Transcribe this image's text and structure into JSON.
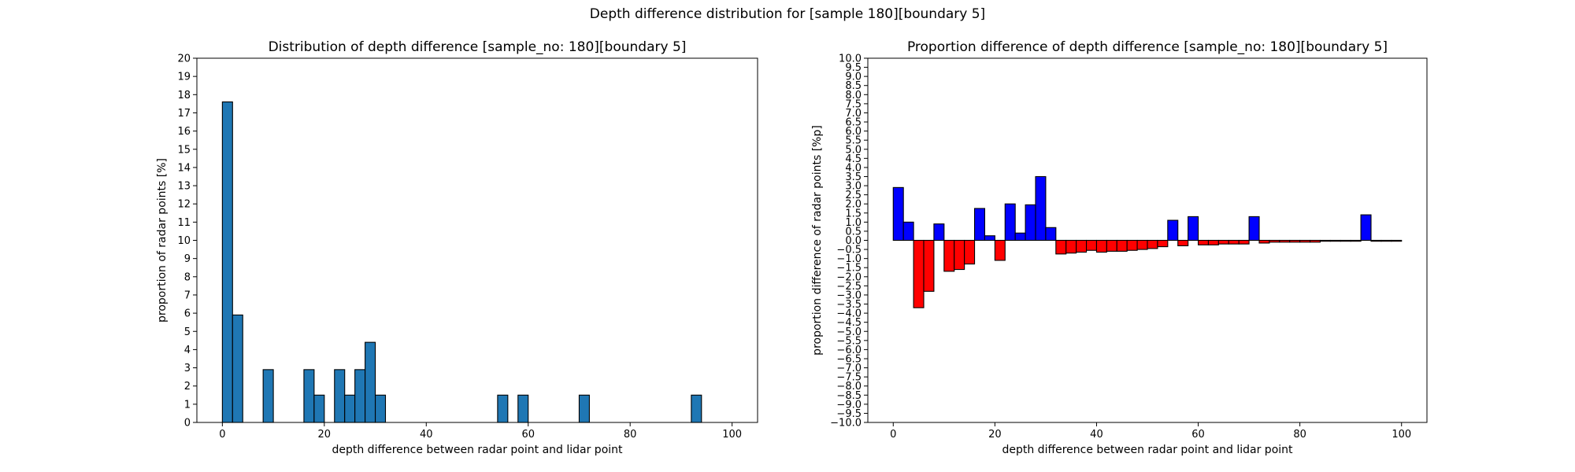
{
  "figure": {
    "title": "Depth difference distribution for [sample 180][boundary 5]"
  },
  "chart_data": [
    {
      "type": "bar",
      "title": "Distribution of depth difference [sample_no: 180][boundary 5]",
      "xlabel": "depth difference between radar point and lidar point",
      "ylabel": "proportion of radar points [%]",
      "xlim": [
        -5,
        105
      ],
      "ylim": [
        0,
        20
      ],
      "xticks": [
        0,
        20,
        40,
        60,
        80,
        100
      ],
      "yticks": [
        0,
        1,
        2,
        3,
        4,
        5,
        6,
        7,
        8,
        9,
        10,
        11,
        12,
        13,
        14,
        15,
        16,
        17,
        18,
        19,
        20
      ],
      "bin_width": 2,
      "bar_color": "#1f77b4",
      "edge_color": "#000000",
      "bins": [
        {
          "x": 0,
          "value": 17.6
        },
        {
          "x": 2,
          "value": 5.9
        },
        {
          "x": 8,
          "value": 2.9
        },
        {
          "x": 16,
          "value": 2.9
        },
        {
          "x": 18,
          "value": 1.5
        },
        {
          "x": 22,
          "value": 2.9
        },
        {
          "x": 24,
          "value": 1.5
        },
        {
          "x": 26,
          "value": 2.9
        },
        {
          "x": 28,
          "value": 4.4
        },
        {
          "x": 30,
          "value": 1.5
        },
        {
          "x": 54,
          "value": 1.5
        },
        {
          "x": 58,
          "value": 1.5
        },
        {
          "x": 70,
          "value": 1.5
        },
        {
          "x": 92,
          "value": 1.5
        }
      ]
    },
    {
      "type": "bar",
      "title": "Proportion difference of depth difference [sample_no: 180][boundary 5]",
      "xlabel": "depth difference between radar point and lidar point",
      "ylabel": "proportion difference of radar points [%p]",
      "xlim": [
        -5,
        105
      ],
      "ylim": [
        -10,
        10
      ],
      "xticks": [
        0,
        20,
        40,
        60,
        80,
        100
      ],
      "yticks": [
        -10.0,
        -9.5,
        -9.0,
        -8.5,
        -8.0,
        -7.5,
        -7.0,
        -6.5,
        -6.0,
        -5.5,
        -5.0,
        -4.5,
        -4.0,
        -3.5,
        -3.0,
        -2.5,
        -2.0,
        -1.5,
        -1.0,
        -0.5,
        0.0,
        0.5,
        1.0,
        1.5,
        2.0,
        2.5,
        3.0,
        3.5,
        4.0,
        4.5,
        5.0,
        5.5,
        6.0,
        6.5,
        7.0,
        7.5,
        8.0,
        8.5,
        9.0,
        9.5,
        10.0
      ],
      "bin_width": 2,
      "positive_color": "#0000ff",
      "negative_color": "#ff0000",
      "edge_color": "#000000",
      "bins": [
        {
          "x": 0,
          "value": 2.9
        },
        {
          "x": 2,
          "value": 1.0
        },
        {
          "x": 4,
          "value": -3.7
        },
        {
          "x": 6,
          "value": -2.8
        },
        {
          "x": 8,
          "value": 0.9
        },
        {
          "x": 10,
          "value": -1.7
        },
        {
          "x": 12,
          "value": -1.6
        },
        {
          "x": 14,
          "value": -1.3
        },
        {
          "x": 16,
          "value": 1.75
        },
        {
          "x": 18,
          "value": 0.25
        },
        {
          "x": 20,
          "value": -1.1
        },
        {
          "x": 22,
          "value": 2.0
        },
        {
          "x": 24,
          "value": 0.4
        },
        {
          "x": 26,
          "value": 1.95
        },
        {
          "x": 28,
          "value": 3.5
        },
        {
          "x": 30,
          "value": 0.7
        },
        {
          "x": 32,
          "value": -0.75
        },
        {
          "x": 34,
          "value": -0.7
        },
        {
          "x": 36,
          "value": -0.65
        },
        {
          "x": 38,
          "value": -0.55
        },
        {
          "x": 40,
          "value": -0.65
        },
        {
          "x": 42,
          "value": -0.6
        },
        {
          "x": 44,
          "value": -0.6
        },
        {
          "x": 46,
          "value": -0.55
        },
        {
          "x": 48,
          "value": -0.5
        },
        {
          "x": 50,
          "value": -0.45
        },
        {
          "x": 52,
          "value": -0.35
        },
        {
          "x": 54,
          "value": 1.1
        },
        {
          "x": 56,
          "value": -0.3
        },
        {
          "x": 58,
          "value": 1.3
        },
        {
          "x": 60,
          "value": -0.25
        },
        {
          "x": 62,
          "value": -0.25
        },
        {
          "x": 64,
          "value": -0.2
        },
        {
          "x": 66,
          "value": -0.2
        },
        {
          "x": 68,
          "value": -0.2
        },
        {
          "x": 70,
          "value": 1.3
        },
        {
          "x": 72,
          "value": -0.15
        },
        {
          "x": 74,
          "value": -0.1
        },
        {
          "x": 76,
          "value": -0.1
        },
        {
          "x": 78,
          "value": -0.1
        },
        {
          "x": 80,
          "value": -0.1
        },
        {
          "x": 82,
          "value": -0.1
        },
        {
          "x": 84,
          "value": -0.05
        },
        {
          "x": 86,
          "value": -0.05
        },
        {
          "x": 88,
          "value": -0.05
        },
        {
          "x": 90,
          "value": -0.05
        },
        {
          "x": 92,
          "value": 1.4
        },
        {
          "x": 94,
          "value": -0.05
        },
        {
          "x": 96,
          "value": -0.05
        },
        {
          "x": 98,
          "value": -0.05
        }
      ]
    }
  ]
}
